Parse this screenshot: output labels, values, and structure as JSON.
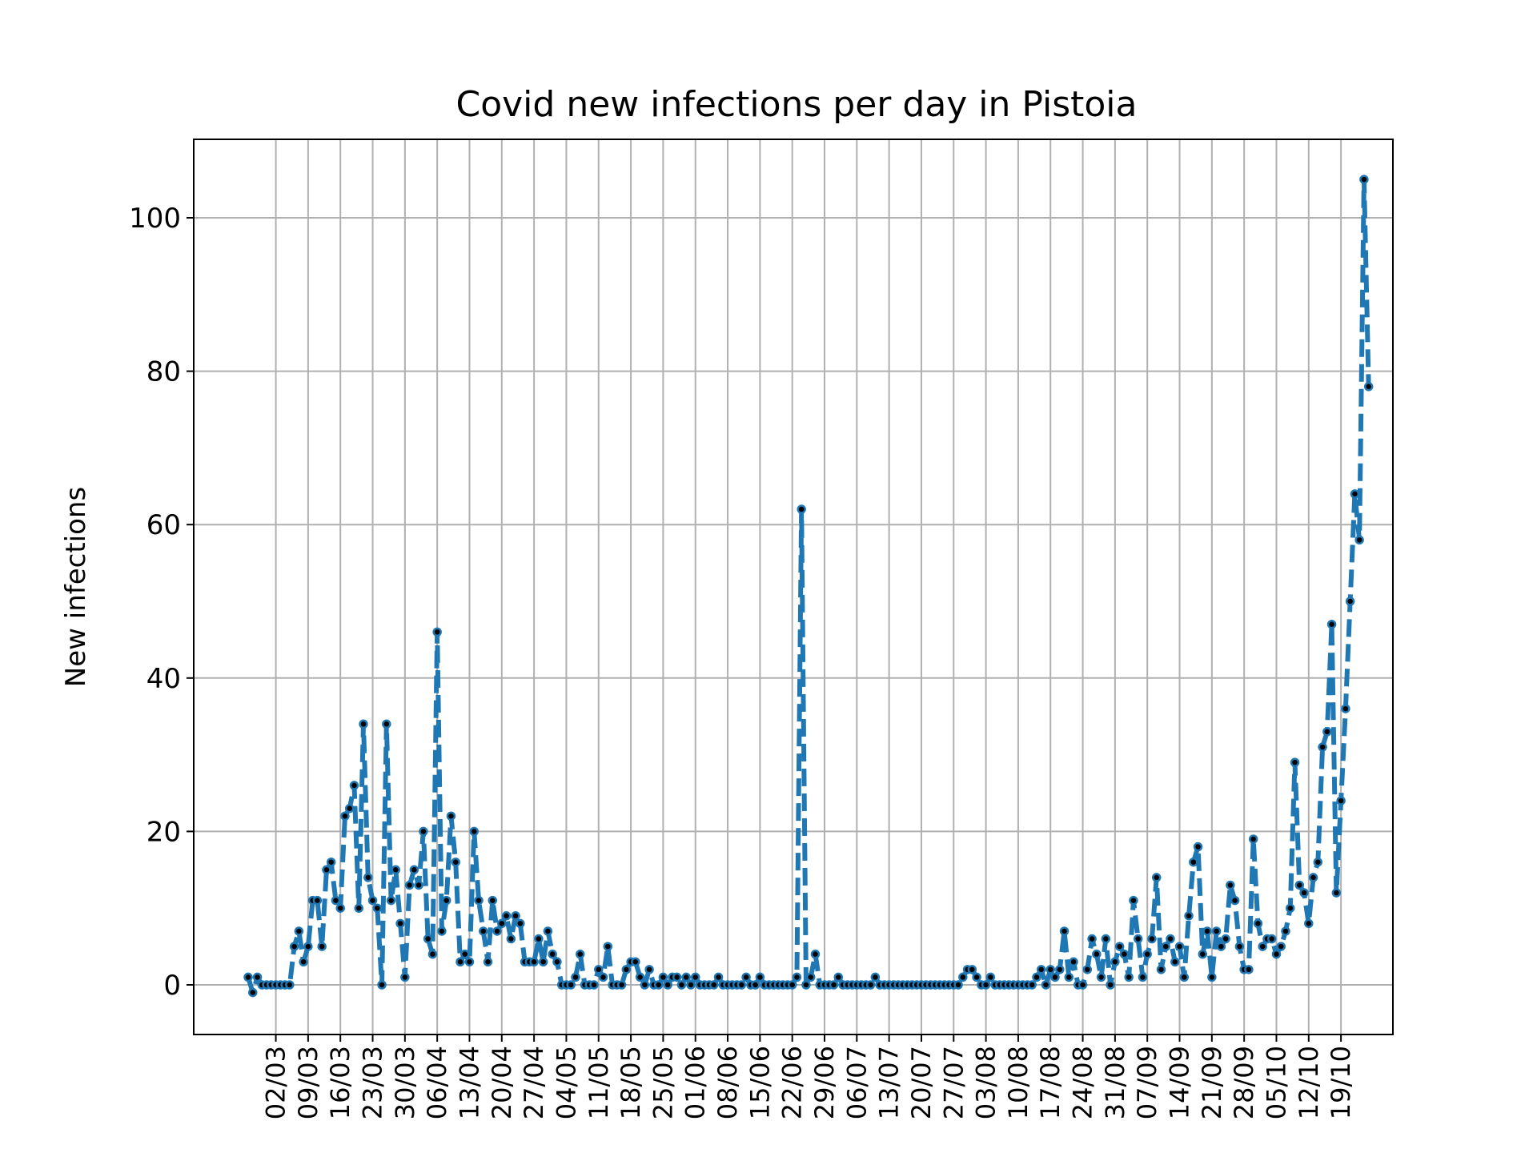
{
  "chart_data": {
    "type": "line",
    "title": "Covid new infections per day in Pistoia",
    "xlabel": "",
    "ylabel": "New infections",
    "x_tick_labels": [
      "02/03",
      "09/03",
      "16/03",
      "23/03",
      "30/03",
      "06/04",
      "13/04",
      "20/04",
      "27/04",
      "04/05",
      "11/05",
      "18/05",
      "25/05",
      "01/06",
      "08/06",
      "15/06",
      "22/06",
      "29/06",
      "06/07",
      "13/07",
      "20/07",
      "27/07",
      "03/08",
      "10/08",
      "17/08",
      "24/08",
      "31/08",
      "07/09",
      "14/09",
      "21/09",
      "28/09",
      "05/10",
      "12/10",
      "19/10"
    ],
    "y_ticks": [
      0,
      20,
      40,
      60,
      80,
      100
    ],
    "ylim": [
      -6,
      110
    ],
    "grid": true,
    "start_date": "25/02",
    "series": [
      {
        "color": "#1f77b4",
        "marker_color": "#000000",
        "linestyle": "dashed",
        "values": [
          1,
          -1,
          1,
          0,
          0,
          0,
          0,
          0,
          0,
          0,
          5,
          7,
          3,
          5,
          11,
          11,
          5,
          15,
          16,
          11,
          10,
          22,
          23,
          26,
          10,
          34,
          14,
          11,
          10,
          0,
          34,
          11,
          15,
          8,
          1,
          13,
          15,
          13,
          20,
          6,
          4,
          46,
          7,
          11,
          22,
          16,
          3,
          4,
          3,
          20,
          11,
          7,
          3,
          11,
          7,
          8,
          9,
          6,
          9,
          8,
          3,
          3,
          3,
          6,
          3,
          7,
          4,
          3,
          0,
          0,
          0,
          1,
          4,
          0,
          0,
          0,
          2,
          1,
          5,
          0,
          0,
          0,
          2,
          3,
          3,
          1,
          0,
          2,
          0,
          0,
          1,
          0,
          1,
          1,
          0,
          1,
          0,
          1,
          0,
          0,
          0,
          0,
          1,
          0,
          0,
          0,
          0,
          0,
          1,
          0,
          0,
          1,
          0,
          0,
          0,
          0,
          0,
          0,
          0,
          1,
          62,
          0,
          1,
          4,
          0,
          0,
          0,
          0,
          1,
          0,
          0,
          0,
          0,
          0,
          0,
          0,
          1,
          0,
          0,
          0,
          0,
          0,
          0,
          0,
          0,
          0,
          0,
          0,
          0,
          0,
          0,
          0,
          0,
          0,
          0,
          1,
          2,
          2,
          1,
          0,
          0,
          1,
          0,
          0,
          0,
          0,
          0,
          0,
          0,
          0,
          0,
          1,
          2,
          0,
          2,
          1,
          2,
          7,
          1,
          3,
          0,
          0,
          2,
          6,
          4,
          1,
          6,
          0,
          3,
          5,
          4,
          1,
          11,
          6,
          1,
          4,
          6,
          14,
          2,
          5,
          6,
          3,
          5,
          1,
          9,
          16,
          18,
          4,
          7,
          1,
          7,
          5,
          6,
          13,
          11,
          5,
          2,
          2,
          19,
          8,
          5,
          6,
          6,
          4,
          5,
          7,
          10,
          29,
          13,
          12,
          8,
          14,
          16,
          31,
          33,
          47,
          12,
          24,
          36,
          50,
          64,
          58,
          105,
          78
        ]
      }
    ]
  }
}
